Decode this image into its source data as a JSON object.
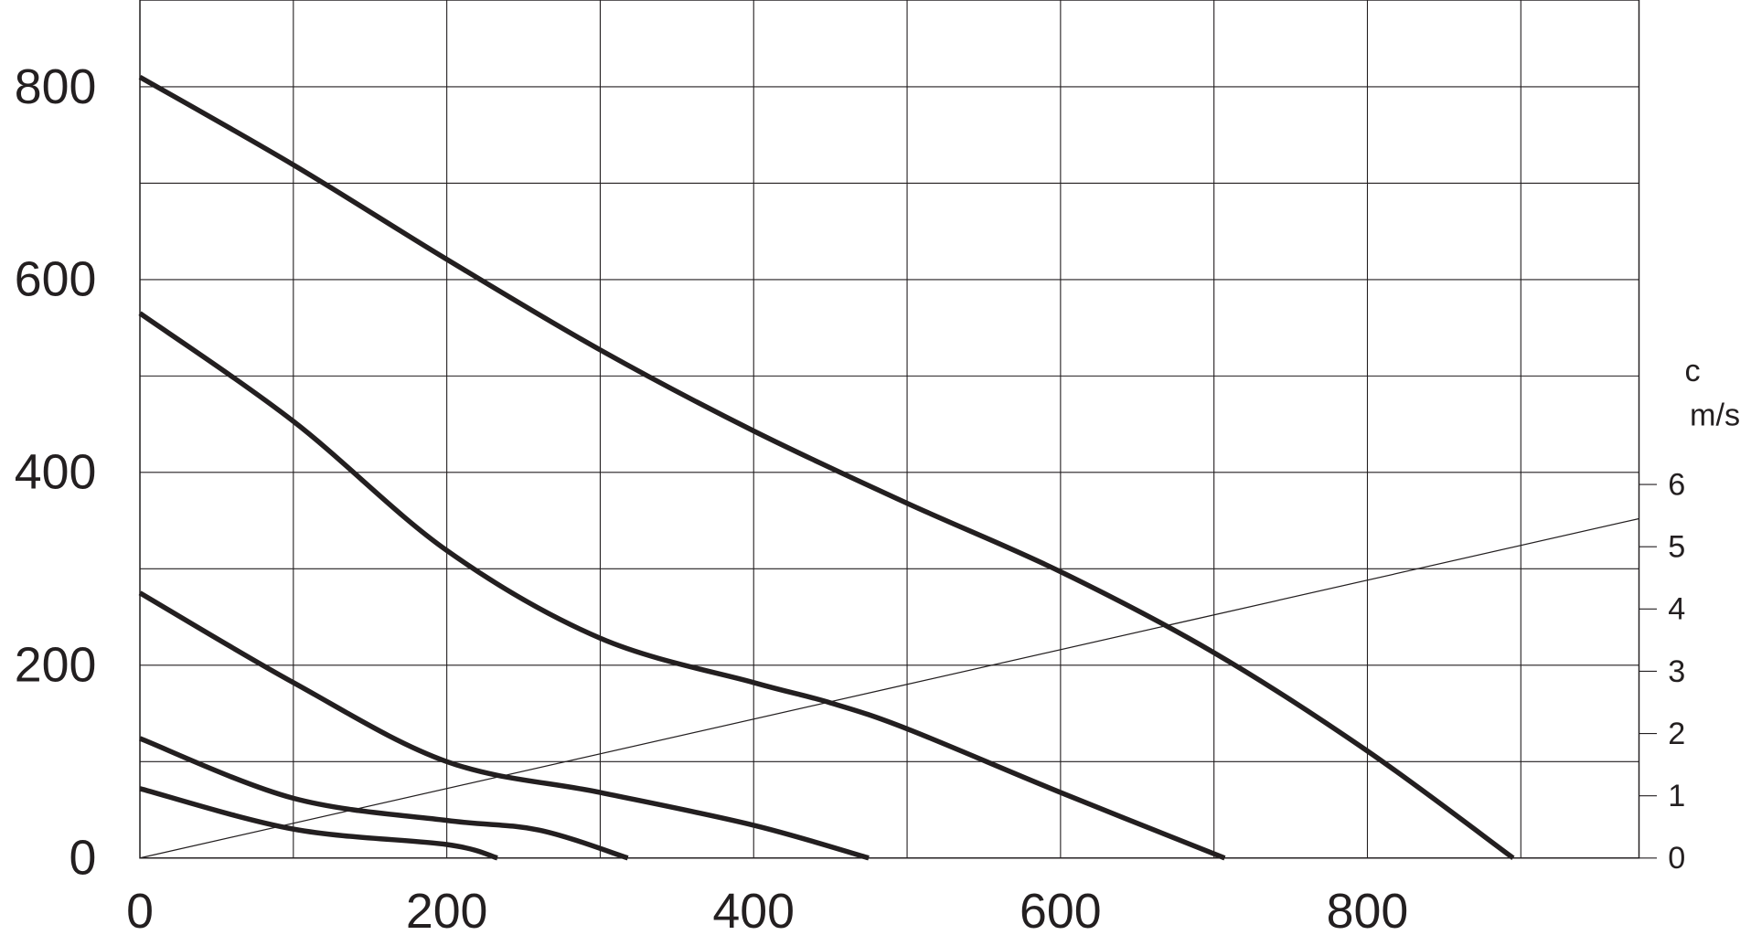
{
  "chart_data": {
    "type": "line",
    "xlim": [
      0,
      977
    ],
    "xticks": [
      0,
      200,
      400,
      600,
      800
    ],
    "xminor": [
      100,
      300,
      500,
      700,
      900
    ],
    "ylim": [
      0,
      890
    ],
    "yticks": [
      0,
      200,
      400,
      600,
      800
    ],
    "yminor": [
      100,
      300,
      500,
      700
    ],
    "y2lim": [
      0,
      13.78
    ],
    "y2ticks": [
      0,
      1,
      2,
      3,
      4,
      5,
      6
    ],
    "y2label": [
      "c",
      "m/s"
    ],
    "grid": true,
    "series": [
      {
        "color": "#231f20",
        "x": [
          0,
          100,
          200,
          300,
          400,
          500,
          600,
          700,
          800,
          895
        ],
        "values": [
          810,
          719,
          621,
          527,
          443,
          368,
          297,
          213,
          111,
          0
        ]
      },
      {
        "color": "#231f20",
        "x": [
          0,
          100,
          200,
          300,
          400,
          450,
          500,
          600,
          707
        ],
        "values": [
          565,
          453,
          319,
          228,
          182,
          161,
          134,
          68,
          0
        ]
      },
      {
        "color": "#231f20",
        "x": [
          0,
          100,
          200,
          300,
          400,
          475
        ],
        "values": [
          275,
          182,
          100,
          68,
          34,
          0
        ]
      },
      {
        "color": "#231f20",
        "x": [
          0,
          100,
          200,
          260,
          318
        ],
        "values": [
          124,
          62,
          39,
          29,
          0
        ]
      },
      {
        "color": "#231f20",
        "x": [
          0,
          100,
          200,
          233
        ],
        "values": [
          72,
          30,
          14,
          0
        ]
      },
      {
        "color": "#231f20",
        "axis": "y2",
        "x": [
          0,
          977
        ],
        "values": [
          0,
          5.45
        ]
      }
    ]
  }
}
